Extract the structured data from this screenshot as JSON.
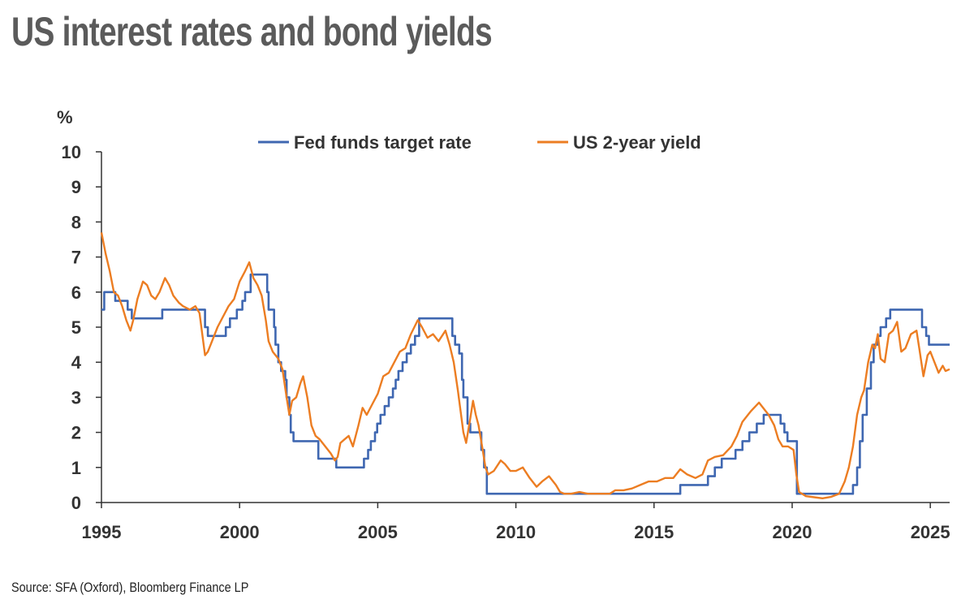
{
  "title": "US interest rates and bond yields",
  "source": "Source: SFA (Oxford), Bloomberg Finance LP",
  "chart_data": {
    "type": "line",
    "yunit": "%",
    "ylim": [
      0,
      10
    ],
    "yticks": [
      0,
      1,
      2,
      3,
      4,
      5,
      6,
      7,
      8,
      9,
      10
    ],
    "xlim": [
      1995,
      2025.7
    ],
    "xticks": [
      1995,
      2000,
      2005,
      2010,
      2015,
      2020,
      2025
    ],
    "grid": false,
    "legend": "top-center",
    "series": [
      {
        "name": "Fed funds target rate",
        "color": "#3f67b1",
        "step": true,
        "points": [
          [
            1995.0,
            5.5
          ],
          [
            1995.1,
            6.0
          ],
          [
            1995.5,
            5.75
          ],
          [
            1995.95,
            5.5
          ],
          [
            1996.1,
            5.25
          ],
          [
            1997.2,
            5.5
          ],
          [
            1998.75,
            5.0
          ],
          [
            1998.85,
            4.75
          ],
          [
            1999.5,
            5.0
          ],
          [
            1999.65,
            5.25
          ],
          [
            1999.9,
            5.5
          ],
          [
            2000.1,
            5.75
          ],
          [
            2000.2,
            6.0
          ],
          [
            2000.4,
            6.5
          ],
          [
            2001.0,
            6.0
          ],
          [
            2001.05,
            5.5
          ],
          [
            2001.25,
            5.0
          ],
          [
            2001.3,
            4.5
          ],
          [
            2001.4,
            4.0
          ],
          [
            2001.5,
            3.75
          ],
          [
            2001.65,
            3.5
          ],
          [
            2001.7,
            3.0
          ],
          [
            2001.8,
            2.5
          ],
          [
            2001.85,
            2.0
          ],
          [
            2001.95,
            1.75
          ],
          [
            2002.85,
            1.25
          ],
          [
            2003.5,
            1.0
          ],
          [
            2004.5,
            1.25
          ],
          [
            2004.65,
            1.5
          ],
          [
            2004.75,
            1.75
          ],
          [
            2004.9,
            2.0
          ],
          [
            2004.98,
            2.25
          ],
          [
            2005.1,
            2.5
          ],
          [
            2005.25,
            2.75
          ],
          [
            2005.4,
            3.0
          ],
          [
            2005.55,
            3.25
          ],
          [
            2005.65,
            3.5
          ],
          [
            2005.75,
            3.75
          ],
          [
            2005.9,
            4.0
          ],
          [
            2006.05,
            4.25
          ],
          [
            2006.2,
            4.5
          ],
          [
            2006.35,
            4.75
          ],
          [
            2006.5,
            5.25
          ],
          [
            2007.7,
            4.75
          ],
          [
            2007.8,
            4.5
          ],
          [
            2007.95,
            4.25
          ],
          [
            2008.05,
            3.5
          ],
          [
            2008.1,
            3.0
          ],
          [
            2008.25,
            2.25
          ],
          [
            2008.35,
            2.0
          ],
          [
            2008.75,
            1.5
          ],
          [
            2008.85,
            1.0
          ],
          [
            2008.95,
            0.25
          ],
          [
            2015.95,
            0.5
          ],
          [
            2016.95,
            0.75
          ],
          [
            2017.2,
            1.0
          ],
          [
            2017.45,
            1.25
          ],
          [
            2017.95,
            1.5
          ],
          [
            2018.2,
            1.75
          ],
          [
            2018.45,
            2.0
          ],
          [
            2018.72,
            2.25
          ],
          [
            2018.97,
            2.5
          ],
          [
            2019.58,
            2.25
          ],
          [
            2019.72,
            2.0
          ],
          [
            2019.83,
            1.75
          ],
          [
            2020.17,
            0.25
          ],
          [
            2022.2,
            0.5
          ],
          [
            2022.35,
            1.0
          ],
          [
            2022.45,
            1.75
          ],
          [
            2022.55,
            2.5
          ],
          [
            2022.7,
            3.25
          ],
          [
            2022.85,
            4.0
          ],
          [
            2022.95,
            4.5
          ],
          [
            2023.1,
            4.75
          ],
          [
            2023.2,
            5.0
          ],
          [
            2023.4,
            5.25
          ],
          [
            2023.55,
            5.5
          ],
          [
            2024.7,
            5.0
          ],
          [
            2024.85,
            4.75
          ],
          [
            2024.95,
            4.5
          ],
          [
            2025.7,
            4.5
          ]
        ]
      },
      {
        "name": "US 2-year yield",
        "color": "#ec7d22",
        "step": false,
        "points": [
          [
            1995.0,
            7.7
          ],
          [
            1995.15,
            7.1
          ],
          [
            1995.3,
            6.6
          ],
          [
            1995.45,
            6.0
          ],
          [
            1995.6,
            5.9
          ],
          [
            1995.75,
            5.6
          ],
          [
            1995.9,
            5.2
          ],
          [
            1996.05,
            4.9
          ],
          [
            1996.15,
            5.2
          ],
          [
            1996.3,
            5.8
          ],
          [
            1996.5,
            6.3
          ],
          [
            1996.65,
            6.2
          ],
          [
            1996.8,
            5.9
          ],
          [
            1996.95,
            5.8
          ],
          [
            1997.1,
            6.0
          ],
          [
            1997.3,
            6.4
          ],
          [
            1997.45,
            6.2
          ],
          [
            1997.6,
            5.9
          ],
          [
            1997.8,
            5.7
          ],
          [
            1997.95,
            5.6
          ],
          [
            1998.2,
            5.5
          ],
          [
            1998.4,
            5.6
          ],
          [
            1998.55,
            5.4
          ],
          [
            1998.65,
            4.8
          ],
          [
            1998.75,
            4.2
          ],
          [
            1998.85,
            4.3
          ],
          [
            1999.0,
            4.6
          ],
          [
            1999.2,
            5.0
          ],
          [
            1999.4,
            5.3
          ],
          [
            1999.6,
            5.6
          ],
          [
            1999.8,
            5.8
          ],
          [
            2000.0,
            6.3
          ],
          [
            2000.2,
            6.6
          ],
          [
            2000.35,
            6.85
          ],
          [
            2000.5,
            6.4
          ],
          [
            2000.65,
            6.2
          ],
          [
            2000.8,
            5.9
          ],
          [
            2000.95,
            5.2
          ],
          [
            2001.05,
            4.6
          ],
          [
            2001.2,
            4.3
          ],
          [
            2001.4,
            4.1
          ],
          [
            2001.55,
            3.8
          ],
          [
            2001.7,
            3.0
          ],
          [
            2001.8,
            2.5
          ],
          [
            2001.9,
            2.9
          ],
          [
            2002.05,
            3.0
          ],
          [
            2002.2,
            3.4
          ],
          [
            2002.3,
            3.6
          ],
          [
            2002.45,
            3.0
          ],
          [
            2002.6,
            2.2
          ],
          [
            2002.75,
            1.9
          ],
          [
            2002.9,
            1.8
          ],
          [
            2003.1,
            1.6
          ],
          [
            2003.3,
            1.4
          ],
          [
            2003.45,
            1.2
          ],
          [
            2003.55,
            1.3
          ],
          [
            2003.65,
            1.7
          ],
          [
            2003.8,
            1.8
          ],
          [
            2003.95,
            1.9
          ],
          [
            2004.1,
            1.6
          ],
          [
            2004.3,
            2.2
          ],
          [
            2004.45,
            2.7
          ],
          [
            2004.6,
            2.5
          ],
          [
            2004.8,
            2.8
          ],
          [
            2005.0,
            3.1
          ],
          [
            2005.2,
            3.6
          ],
          [
            2005.4,
            3.7
          ],
          [
            2005.6,
            4.0
          ],
          [
            2005.8,
            4.3
          ],
          [
            2006.0,
            4.4
          ],
          [
            2006.2,
            4.8
          ],
          [
            2006.45,
            5.2
          ],
          [
            2006.6,
            5.0
          ],
          [
            2006.8,
            4.7
          ],
          [
            2007.0,
            4.8
          ],
          [
            2007.2,
            4.6
          ],
          [
            2007.45,
            4.9
          ],
          [
            2007.6,
            4.5
          ],
          [
            2007.75,
            4.0
          ],
          [
            2007.9,
            3.2
          ],
          [
            2008.0,
            2.6
          ],
          [
            2008.1,
            2.0
          ],
          [
            2008.2,
            1.7
          ],
          [
            2008.35,
            2.4
          ],
          [
            2008.45,
            2.9
          ],
          [
            2008.55,
            2.5
          ],
          [
            2008.65,
            2.2
          ],
          [
            2008.8,
            1.5
          ],
          [
            2008.9,
            1.0
          ],
          [
            2009.0,
            0.8
          ],
          [
            2009.2,
            0.9
          ],
          [
            2009.45,
            1.2
          ],
          [
            2009.6,
            1.1
          ],
          [
            2009.8,
            0.9
          ],
          [
            2010.0,
            0.9
          ],
          [
            2010.25,
            1.0
          ],
          [
            2010.5,
            0.7
          ],
          [
            2010.75,
            0.45
          ],
          [
            2010.95,
            0.6
          ],
          [
            2011.2,
            0.75
          ],
          [
            2011.45,
            0.5
          ],
          [
            2011.6,
            0.3
          ],
          [
            2011.75,
            0.25
          ],
          [
            2012.0,
            0.25
          ],
          [
            2012.3,
            0.3
          ],
          [
            2012.6,
            0.25
          ],
          [
            2013.0,
            0.25
          ],
          [
            2013.4,
            0.25
          ],
          [
            2013.6,
            0.35
          ],
          [
            2013.9,
            0.35
          ],
          [
            2014.2,
            0.4
          ],
          [
            2014.5,
            0.5
          ],
          [
            2014.8,
            0.6
          ],
          [
            2015.1,
            0.6
          ],
          [
            2015.4,
            0.7
          ],
          [
            2015.7,
            0.7
          ],
          [
            2015.95,
            0.95
          ],
          [
            2016.2,
            0.8
          ],
          [
            2016.5,
            0.7
          ],
          [
            2016.75,
            0.8
          ],
          [
            2016.95,
            1.2
          ],
          [
            2017.2,
            1.3
          ],
          [
            2017.5,
            1.35
          ],
          [
            2017.8,
            1.6
          ],
          [
            2018.0,
            1.9
          ],
          [
            2018.2,
            2.3
          ],
          [
            2018.5,
            2.6
          ],
          [
            2018.8,
            2.85
          ],
          [
            2018.95,
            2.7
          ],
          [
            2019.15,
            2.5
          ],
          [
            2019.35,
            2.2
          ],
          [
            2019.5,
            1.8
          ],
          [
            2019.65,
            1.6
          ],
          [
            2019.85,
            1.6
          ],
          [
            2020.05,
            1.5
          ],
          [
            2020.15,
            0.8
          ],
          [
            2020.25,
            0.3
          ],
          [
            2020.5,
            0.18
          ],
          [
            2020.8,
            0.15
          ],
          [
            2021.1,
            0.12
          ],
          [
            2021.4,
            0.16
          ],
          [
            2021.7,
            0.25
          ],
          [
            2021.9,
            0.6
          ],
          [
            2022.05,
            1.0
          ],
          [
            2022.2,
            1.6
          ],
          [
            2022.35,
            2.5
          ],
          [
            2022.5,
            3.0
          ],
          [
            2022.6,
            3.2
          ],
          [
            2022.75,
            4.0
          ],
          [
            2022.9,
            4.5
          ],
          [
            2023.0,
            4.4
          ],
          [
            2023.1,
            4.8
          ],
          [
            2023.2,
            4.1
          ],
          [
            2023.35,
            4.0
          ],
          [
            2023.5,
            4.8
          ],
          [
            2023.65,
            4.9
          ],
          [
            2023.8,
            5.15
          ],
          [
            2023.95,
            4.3
          ],
          [
            2024.1,
            4.4
          ],
          [
            2024.3,
            4.8
          ],
          [
            2024.5,
            4.9
          ],
          [
            2024.62,
            4.3
          ],
          [
            2024.75,
            3.6
          ],
          [
            2024.9,
            4.2
          ],
          [
            2025.0,
            4.3
          ],
          [
            2025.15,
            4.0
          ],
          [
            2025.3,
            3.7
          ],
          [
            2025.45,
            3.9
          ],
          [
            2025.55,
            3.75
          ],
          [
            2025.7,
            3.8
          ]
        ]
      }
    ]
  }
}
